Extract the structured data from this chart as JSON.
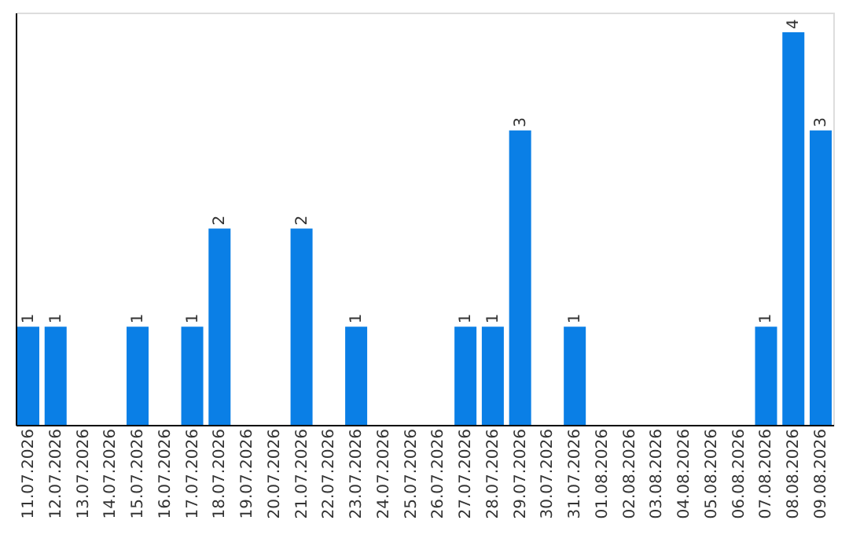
{
  "chart_data": {
    "type": "bar",
    "categories": [
      "11.07.2026",
      "12.07.2026",
      "13.07.2026",
      "14.07.2026",
      "15.07.2026",
      "16.07.2026",
      "17.07.2026",
      "18.07.2026",
      "19.07.2026",
      "20.07.2026",
      "21.07.2026",
      "22.07.2026",
      "23.07.2026",
      "24.07.2026",
      "25.07.2026",
      "26.07.2026",
      "27.07.2026",
      "28.07.2026",
      "29.07.2026",
      "30.07.2026",
      "31.07.2026",
      "01.08.2026",
      "02.08.2026",
      "03.08.2026",
      "04.08.2026",
      "05.08.2026",
      "06.08.2026",
      "07.08.2026",
      "08.08.2026",
      "09.08.2026"
    ],
    "values": [
      1,
      1,
      0,
      0,
      1,
      0,
      1,
      2,
      0,
      0,
      2,
      0,
      1,
      0,
      0,
      0,
      1,
      1,
      3,
      0,
      1,
      0,
      0,
      0,
      0,
      0,
      0,
      1,
      4,
      3
    ],
    "value_labels": [
      "1",
      "1",
      null,
      null,
      "1",
      null,
      "1",
      "2",
      null,
      null,
      "2",
      null,
      "1",
      null,
      null,
      null,
      "1",
      "1",
      "3",
      null,
      "1",
      null,
      null,
      null,
      null,
      null,
      null,
      "1",
      "4",
      "3"
    ],
    "color": "#0a7fe6",
    "ylim": [
      0,
      4.2
    ],
    "tick_labels": "x",
    "grid": false
  }
}
